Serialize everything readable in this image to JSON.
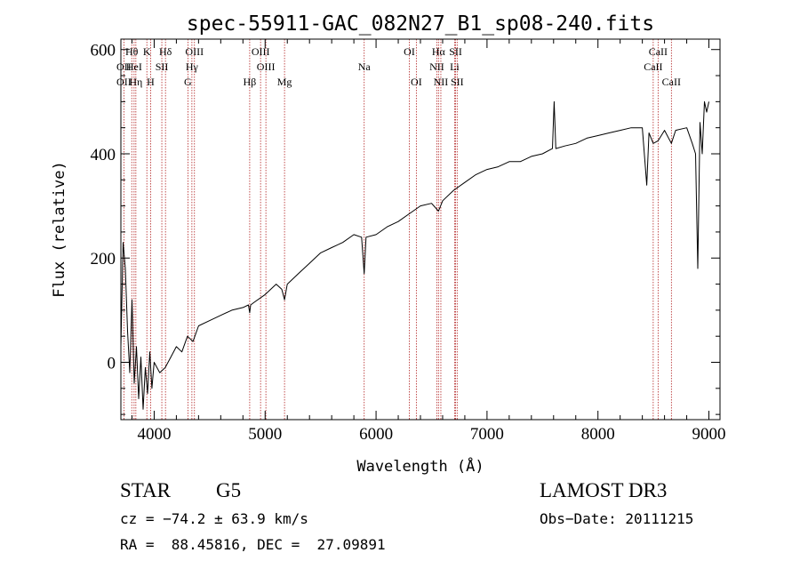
{
  "chart_data": {
    "type": "line",
    "title": "spec-55911-GAC_082N27_B1_sp08-240.fits",
    "xlabel": "Wavelength (Å)",
    "ylabel": "Flux (relative)",
    "xlim": [
      3700,
      9100
    ],
    "ylim": [
      -110,
      620
    ],
    "xticks": [
      4000,
      5000,
      6000,
      7000,
      8000,
      9000
    ],
    "yticks": [
      0,
      200,
      400,
      600
    ],
    "grid": false,
    "series": [
      {
        "name": "spectrum",
        "x": [
          3700,
          3720,
          3740,
          3760,
          3780,
          3800,
          3820,
          3840,
          3860,
          3880,
          3900,
          3920,
          3940,
          3960,
          3980,
          4000,
          4050,
          4100,
          4150,
          4200,
          4250,
          4300,
          4350,
          4400,
          4500,
          4600,
          4700,
          4800,
          4850,
          4861,
          4870,
          4900,
          5000,
          5100,
          5150,
          5175,
          5200,
          5300,
          5400,
          5500,
          5600,
          5700,
          5800,
          5870,
          5893,
          5910,
          6000,
          6100,
          6200,
          6300,
          6400,
          6500,
          6563,
          6600,
          6700,
          6800,
          6900,
          7000,
          7100,
          7200,
          7300,
          7400,
          7500,
          7590,
          7605,
          7620,
          7700,
          7800,
          7900,
          8000,
          8100,
          8200,
          8300,
          8400,
          8440,
          8460,
          8498,
          8542,
          8600,
          8662,
          8700,
          8800,
          8850,
          8880,
          8900,
          8920,
          8940,
          8960,
          8980,
          9000
        ],
        "y": [
          30,
          230,
          180,
          60,
          -20,
          120,
          -40,
          30,
          -70,
          10,
          -90,
          -10,
          -60,
          20,
          -50,
          0,
          -20,
          -10,
          10,
          30,
          20,
          50,
          40,
          70,
          80,
          90,
          100,
          105,
          110,
          95,
          110,
          115,
          130,
          150,
          140,
          120,
          150,
          170,
          190,
          210,
          220,
          230,
          245,
          240,
          170,
          240,
          245,
          260,
          270,
          285,
          300,
          305,
          290,
          310,
          330,
          345,
          360,
          370,
          375,
          385,
          385,
          395,
          400,
          410,
          500,
          410,
          415,
          420,
          430,
          435,
          440,
          445,
          450,
          450,
          340,
          440,
          420,
          425,
          445,
          420,
          445,
          450,
          420,
          400,
          180,
          460,
          400,
          500,
          480,
          500
        ]
      }
    ],
    "lines": [
      {
        "name": "Hθ",
        "wave": 3798,
        "row": 0
      },
      {
        "name": "OII",
        "wave": 3727,
        "row": 1
      },
      {
        "name": "HeI",
        "wave": 3819,
        "row": 1
      },
      {
        "name": "OII",
        "wave": 3727,
        "row": 2
      },
      {
        "name": "Hη",
        "wave": 3835,
        "row": 2
      },
      {
        "name": "K",
        "wave": 3934,
        "row": 0
      },
      {
        "name": "H",
        "wave": 3968,
        "row": 2
      },
      {
        "name": "SII",
        "wave": 4069,
        "row": 1
      },
      {
        "name": "Hδ",
        "wave": 4102,
        "row": 0
      },
      {
        "name": "OIII",
        "wave": 4363,
        "row": 0
      },
      {
        "name": "Hγ",
        "wave": 4340,
        "row": 1
      },
      {
        "name": "G",
        "wave": 4304,
        "row": 2
      },
      {
        "name": "OIII",
        "wave": 4959,
        "row": 0
      },
      {
        "name": "OIII",
        "wave": 5007,
        "row": 1
      },
      {
        "name": "Hβ",
        "wave": 4861,
        "row": 2
      },
      {
        "name": "Mg",
        "wave": 5175,
        "row": 2
      },
      {
        "name": "Na",
        "wave": 5893,
        "row": 1
      },
      {
        "name": "OI",
        "wave": 6300,
        "row": 0
      },
      {
        "name": "OI",
        "wave": 6363,
        "row": 2
      },
      {
        "name": "Hα",
        "wave": 6563,
        "row": 0
      },
      {
        "name": "NII",
        "wave": 6548,
        "row": 1
      },
      {
        "name": "NII",
        "wave": 6584,
        "row": 2
      },
      {
        "name": "SII",
        "wave": 6717,
        "row": 0
      },
      {
        "name": "Li",
        "wave": 6708,
        "row": 1
      },
      {
        "name": "SII",
        "wave": 6731,
        "row": 2
      },
      {
        "name": "CaII",
        "wave": 8542,
        "row": 0
      },
      {
        "name": "CaII",
        "wave": 8498,
        "row": 1
      },
      {
        "name": "CaII",
        "wave": 8662,
        "row": 2
      }
    ]
  },
  "footer": {
    "object_class": "STAR",
    "subclass": "G5",
    "survey": "LAMOST DR3",
    "cz": "cz = −74.2 ± 63.9 km/s",
    "obs_date": "Obs−Date: 20111215",
    "coords": "RA =  88.45816, DEC =  27.09891"
  },
  "colors": {
    "spectrum": "#000000",
    "line_marker": "#b22222",
    "axes": "#000000"
  }
}
